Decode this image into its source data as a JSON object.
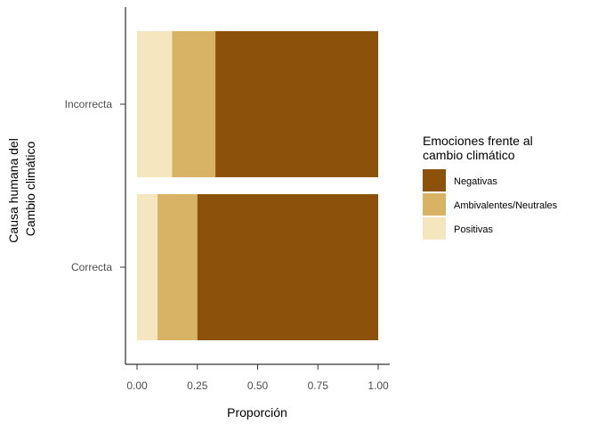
{
  "chart_data": {
    "type": "bar",
    "orientation": "horizontal",
    "stacked": true,
    "categories": [
      "Incorrecta",
      "Correcta"
    ],
    "series": [
      {
        "name": "Positivas",
        "color": "#F5E6C0",
        "values": [
          0.145,
          0.085
        ]
      },
      {
        "name": "Ambivalentes/Neutrales",
        "color": "#D8B365",
        "values": [
          0.18,
          0.165
        ]
      },
      {
        "name": "Negativas",
        "color": "#8C510A",
        "values": [
          0.675,
          0.75
        ]
      }
    ],
    "xlabel": "Proporción",
    "ylabel_lines": [
      "Causa humana del",
      "Cambio climático"
    ],
    "xlim": [
      0,
      1
    ],
    "xticks": [
      "0.00",
      "0.25",
      "0.50",
      "0.75",
      "1.00"
    ],
    "grid": false,
    "legend": {
      "title_lines": [
        "Emociones frente al",
        "cambio climático"
      ],
      "placement": "right",
      "entries": [
        "Negativas",
        "Ambivalentes/Neutrales",
        "Positivas"
      ]
    }
  }
}
